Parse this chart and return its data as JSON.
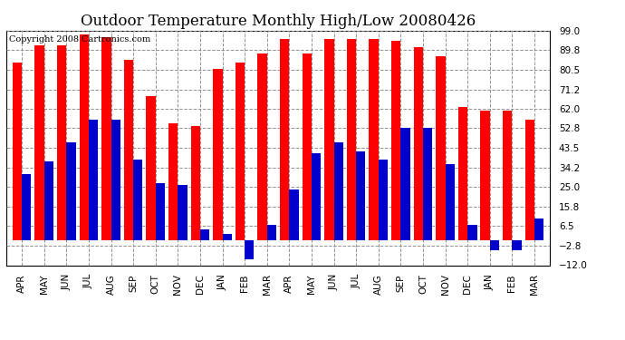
{
  "title": "Outdoor Temperature Monthly High/Low 20080426",
  "copyright": "Copyright 2008 Cartronics.com",
  "months": [
    "APR",
    "MAY",
    "JUN",
    "JUL",
    "AUG",
    "SEP",
    "OCT",
    "NOV",
    "DEC",
    "JAN",
    "FEB",
    "MAR",
    "APR",
    "MAY",
    "JUN",
    "JUL",
    "AUG",
    "SEP",
    "OCT",
    "NOV",
    "DEC",
    "JAN",
    "FEB",
    "MAR"
  ],
  "highs": [
    84,
    92,
    92,
    97,
    96,
    85,
    68,
    55,
    54,
    81,
    84,
    88,
    95,
    88,
    95,
    95,
    95,
    94,
    91,
    87,
    63,
    61,
    61,
    57
  ],
  "lows": [
    31,
    37,
    46,
    57,
    57,
    38,
    27,
    26,
    5,
    3,
    -9,
    7,
    24,
    41,
    46,
    42,
    38,
    53,
    53,
    36,
    7,
    -5,
    -5,
    10
  ],
  "high_color": "#FF0000",
  "low_color": "#0000CC",
  "background_color": "#FFFFFF",
  "grid_color": "#888888",
  "yticks": [
    99.0,
    89.8,
    80.5,
    71.2,
    62.0,
    52.8,
    43.5,
    34.2,
    25.0,
    15.8,
    6.5,
    -2.8,
    -12.0
  ],
  "ylim": [
    -12.0,
    99.0
  ],
  "title_fontsize": 12,
  "tick_fontsize": 7.5,
  "copyright_fontsize": 7
}
